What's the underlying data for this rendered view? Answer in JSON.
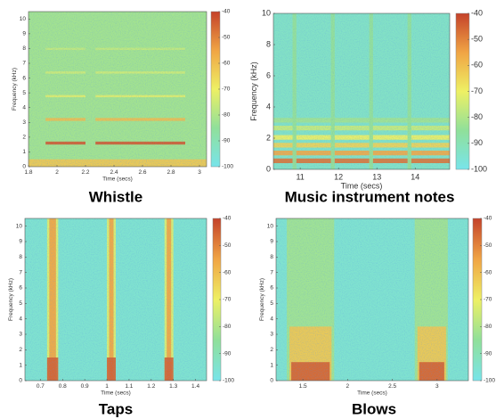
{
  "chart_data": [
    {
      "type": "spectrogram",
      "caption": "Whistle",
      "xlabel": "Time (secs)",
      "ylabel": "Frequency (kHz)",
      "xlim": [
        1.8,
        3.05
      ],
      "xticks": [
        1.8,
        2,
        2.2,
        2.4,
        2.6,
        2.8,
        3
      ],
      "ylim": [
        0,
        10.5
      ],
      "yticks": [
        0,
        1,
        2,
        3,
        4,
        5,
        6,
        7,
        8,
        9,
        10
      ],
      "clim": [
        -100,
        -40
      ],
      "cticks": [
        -40,
        -50,
        -60,
        -70,
        -80,
        -90,
        -100
      ],
      "colormap": [
        "#78e4ea",
        "#90e09a",
        "#eef064",
        "#f0a444",
        "#c4422a"
      ],
      "background_level": -82,
      "events": [
        {
          "x0": 1.8,
          "x1": 3.05,
          "y0": 0,
          "y1": 0.5,
          "level": -62
        },
        {
          "x0": 1.92,
          "x1": 2.2,
          "y0": 1.5,
          "y1": 1.7,
          "level": -44
        },
        {
          "x0": 2.27,
          "x1": 2.9,
          "y0": 1.5,
          "y1": 1.7,
          "level": -44
        },
        {
          "x0": 1.92,
          "x1": 2.2,
          "y0": 3.1,
          "y1": 3.3,
          "level": -60
        },
        {
          "x0": 2.27,
          "x1": 2.9,
          "y0": 3.1,
          "y1": 3.3,
          "level": -60
        },
        {
          "x0": 1.92,
          "x1": 2.2,
          "y0": 4.7,
          "y1": 4.85,
          "level": -72
        },
        {
          "x0": 2.27,
          "x1": 2.9,
          "y0": 4.7,
          "y1": 4.85,
          "level": -72
        },
        {
          "x0": 1.92,
          "x1": 2.2,
          "y0": 6.3,
          "y1": 6.45,
          "level": -75
        },
        {
          "x0": 2.27,
          "x1": 2.9,
          "y0": 6.3,
          "y1": 6.45,
          "level": -75
        },
        {
          "x0": 1.92,
          "x1": 2.2,
          "y0": 7.9,
          "y1": 8.05,
          "level": -77
        },
        {
          "x0": 2.27,
          "x1": 2.9,
          "y0": 7.9,
          "y1": 8.05,
          "level": -77
        }
      ]
    },
    {
      "type": "spectrogram",
      "caption": "Music instrument notes",
      "xlabel": "Time (secs)",
      "ylabel": "Frequency (kHz)",
      "xlim": [
        10.3,
        14.9
      ],
      "xticks": [
        11,
        12,
        13,
        14
      ],
      "ylim": [
        0,
        10
      ],
      "yticks": [
        0,
        2,
        4,
        6,
        8,
        10
      ],
      "clim": [
        -100,
        -40
      ],
      "cticks": [
        -40,
        -50,
        -60,
        -70,
        -80,
        -90,
        -100
      ],
      "colormap": [
        "#78e4ea",
        "#90e09a",
        "#eef064",
        "#f0a444",
        "#c4422a"
      ],
      "background_level": -93,
      "events": [
        {
          "x0": 10.3,
          "x1": 14.9,
          "y0": 0.4,
          "y1": 0.7,
          "level": -48
        },
        {
          "x0": 10.3,
          "x1": 14.9,
          "y0": 0.9,
          "y1": 1.2,
          "level": -56
        },
        {
          "x0": 10.3,
          "x1": 14.9,
          "y0": 1.4,
          "y1": 1.7,
          "level": -64
        },
        {
          "x0": 10.3,
          "x1": 14.9,
          "y0": 1.9,
          "y1": 2.2,
          "level": -70
        },
        {
          "x0": 10.3,
          "x1": 14.9,
          "y0": 2.5,
          "y1": 2.8,
          "level": -76
        },
        {
          "x0": 10.3,
          "x1": 14.9,
          "y0": 3.0,
          "y1": 3.3,
          "level": -82
        },
        {
          "x0": 10.8,
          "x1": 10.9,
          "y0": 0,
          "y1": 10,
          "level": -84
        },
        {
          "x0": 11.8,
          "x1": 11.9,
          "y0": 0,
          "y1": 10,
          "level": -84
        },
        {
          "x0": 12.8,
          "x1": 12.9,
          "y0": 0,
          "y1": 10,
          "level": -84
        },
        {
          "x0": 13.8,
          "x1": 13.9,
          "y0": 0,
          "y1": 10,
          "level": -84
        }
      ]
    },
    {
      "type": "spectrogram",
      "caption": "Taps",
      "xlabel": "Time (secs)",
      "ylabel": "Frequency (kHz)",
      "xlim": [
        0.63,
        1.45
      ],
      "xticks": [
        0.7,
        0.8,
        0.9,
        1,
        1.1,
        1.2,
        1.3,
        1.4
      ],
      "ylim": [
        0,
        10.5
      ],
      "yticks": [
        0,
        1,
        2,
        3,
        4,
        5,
        6,
        7,
        8,
        9,
        10
      ],
      "clim": [
        -100,
        -40
      ],
      "cticks": [
        -40,
        -50,
        -60,
        -70,
        -80,
        -90,
        -100
      ],
      "colormap": [
        "#78e4ea",
        "#90e09a",
        "#eef064",
        "#f0a444",
        "#c4422a"
      ],
      "background_level": -95,
      "events": [
        {
          "x0": 0.73,
          "x1": 0.78,
          "y0": 0,
          "y1": 10.5,
          "level": -72
        },
        {
          "x0": 1.0,
          "x1": 1.04,
          "y0": 0,
          "y1": 10.5,
          "level": -72
        },
        {
          "x0": 1.26,
          "x1": 1.3,
          "y0": 0,
          "y1": 10.5,
          "level": -72
        },
        {
          "x0": 0.74,
          "x1": 0.77,
          "y0": 0,
          "y1": 10.5,
          "level": -55
        },
        {
          "x0": 1.01,
          "x1": 1.03,
          "y0": 0,
          "y1": 10.5,
          "level": -55
        },
        {
          "x0": 1.27,
          "x1": 1.29,
          "y0": 0,
          "y1": 10.5,
          "level": -55
        },
        {
          "x0": 0.73,
          "x1": 0.78,
          "y0": 0,
          "y1": 1.5,
          "level": -45
        },
        {
          "x0": 1.0,
          "x1": 1.04,
          "y0": 0,
          "y1": 1.5,
          "level": -45
        },
        {
          "x0": 1.26,
          "x1": 1.3,
          "y0": 0,
          "y1": 1.5,
          "level": -45
        }
      ]
    },
    {
      "type": "spectrogram",
      "caption": "Blows",
      "xlabel": "Time (secs)",
      "ylabel": "Frequency (kHz)",
      "xlim": [
        1.2,
        3.35
      ],
      "xticks": [
        1.5,
        2,
        2.5,
        3
      ],
      "ylim": [
        0,
        10.5
      ],
      "yticks": [
        0,
        1,
        2,
        3,
        4,
        5,
        6,
        7,
        8,
        9,
        10
      ],
      "clim": [
        -100,
        -40
      ],
      "cticks": [
        -40,
        -50,
        -60,
        -70,
        -80,
        -90,
        -100
      ],
      "colormap": [
        "#78e4ea",
        "#90e09a",
        "#eef064",
        "#f0a444",
        "#c4422a"
      ],
      "background_level": -95,
      "events": [
        {
          "x0": 1.32,
          "x1": 1.85,
          "y0": 0,
          "y1": 10.5,
          "level": -82
        },
        {
          "x0": 2.75,
          "x1": 3.12,
          "y0": 0,
          "y1": 10.5,
          "level": -82
        },
        {
          "x0": 1.35,
          "x1": 1.82,
          "y0": 0,
          "y1": 3.5,
          "level": -62
        },
        {
          "x0": 2.78,
          "x1": 3.1,
          "y0": 0,
          "y1": 3.5,
          "level": -62
        },
        {
          "x0": 1.37,
          "x1": 1.8,
          "y0": 0,
          "y1": 1.2,
          "level": -45
        },
        {
          "x0": 2.8,
          "x1": 3.08,
          "y0": 0,
          "y1": 1.2,
          "level": -45
        }
      ]
    }
  ]
}
